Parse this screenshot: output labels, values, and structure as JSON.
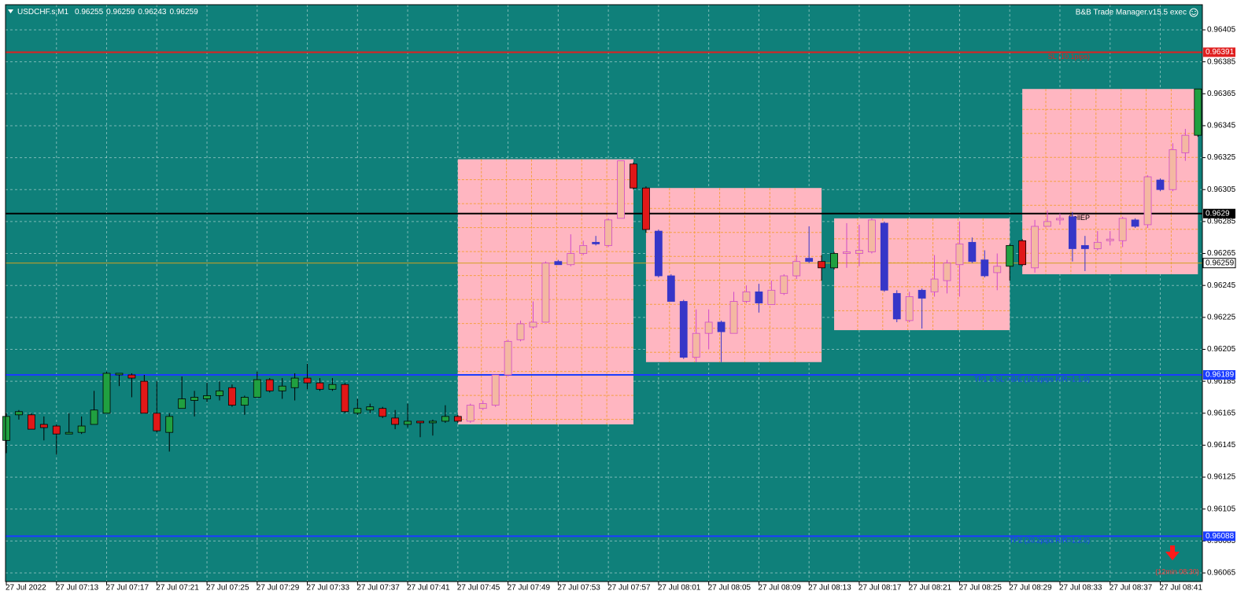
{
  "chart_data": {
    "type": "candlestick",
    "header": {
      "symbol": "USDCHF.s,M1",
      "ohlc": [
        0.96255,
        0.96259,
        0.96243,
        0.96259
      ]
    },
    "tool": "B&B Trade Manager.v15.5 exec",
    "countdown": "(12min 08:30)",
    "categories": [
      "27 Jul 2022",
      null,
      null,
      null,
      "27 Jul 07:13",
      null,
      null,
      null,
      "27 Jul 07:17",
      null,
      null,
      null,
      "27 Jul 07:21",
      null,
      null,
      null,
      "27 Jul 07:25",
      null,
      null,
      null,
      "27 Jul 07:29",
      null,
      null,
      null,
      "27 Jul 07:33",
      null,
      null,
      null,
      "27 Jul 07:37",
      null,
      null,
      null,
      "27 Jul 07:41",
      null,
      null,
      null,
      "27 Jul 07:45",
      null,
      null,
      null,
      "27 Jul 07:49",
      null,
      null,
      null,
      "27 Jul 07:53",
      null,
      null,
      null,
      "27 Jul 07:57",
      null,
      null,
      null,
      "27 Jul 08:01",
      null,
      null,
      null,
      "27 Jul 08:05",
      null,
      null,
      null,
      "27 Jul 08:09",
      null,
      null,
      null,
      "27 Jul 08:13",
      null,
      null,
      null,
      "27 Jul 08:17",
      null,
      null,
      null,
      "27 Jul 08:21",
      null,
      null,
      null,
      "27 Jul 08:25",
      null,
      null,
      null,
      "27 Jul 08:29",
      null,
      null,
      null,
      "27 Jul 08:33",
      null,
      null,
      null,
      "27 Jul 08:37",
      null,
      null,
      null,
      "27 Jul 08:41",
      null,
      null,
      null
    ],
    "open": [
      0.96148,
      0.96164,
      0.96164,
      0.96158,
      0.96157,
      0.96152,
      0.96153,
      0.96158,
      0.96165,
      0.96189,
      0.96189,
      0.96185,
      0.96165,
      0.96153,
      0.96168,
      0.96173,
      0.96174,
      0.96176,
      0.96181,
      0.9617,
      0.96175,
      0.96186,
      0.96179,
      0.96181,
      0.96187,
      0.96184,
      0.9618,
      0.96183,
      0.96165,
      0.96167,
      0.96168,
      0.96162,
      0.96158,
      0.9616,
      0.96159,
      0.9616,
      0.96163,
      0.9616,
      0.96168,
      0.9617,
      0.96189,
      0.96211,
      0.96219,
      0.96222,
      0.9626,
      0.96258,
      0.96265,
      0.96272,
      0.9627,
      0.96287,
      0.96321,
      0.96306,
      0.96279,
      0.96251,
      0.96235,
      0.962,
      0.96215,
      0.96222,
      0.96215,
      0.96235,
      0.96241,
      0.96233,
      0.9624,
      0.96251,
      0.96262,
      0.9626,
      0.96256,
      0.96265,
      0.96265,
      0.96266,
      0.96284,
      0.9624,
      0.96223,
      0.96242,
      0.96241,
      0.96248,
      0.96258,
      0.96272,
      0.96261,
      0.96253,
      0.96257,
      0.96273,
      0.96256,
      0.96282,
      0.96286,
      0.96288,
      0.9627,
      0.96268,
      0.96273,
      0.96273,
      0.96286,
      0.96283,
      0.96311,
      0.96305,
      0.96328,
      0.96339
    ],
    "high": [
      0.96165,
      0.96167,
      0.96165,
      0.96163,
      0.96158,
      0.96165,
      0.96163,
      0.96179,
      0.96191,
      0.9619,
      0.9619,
      0.96189,
      0.96185,
      0.96165,
      0.96188,
      0.96179,
      0.96184,
      0.96185,
      0.96183,
      0.96176,
      0.96191,
      0.96187,
      0.96187,
      0.9619,
      0.96196,
      0.96187,
      0.96187,
      0.96184,
      0.96174,
      0.96171,
      0.96169,
      0.96167,
      0.96171,
      0.9616,
      0.96161,
      0.9617,
      0.96164,
      0.96171,
      0.96173,
      0.96189,
      0.96211,
      0.96223,
      0.96235,
      0.9626,
      0.96261,
      0.96277,
      0.96273,
      0.96276,
      0.96287,
      0.96323,
      0.96322,
      0.96307,
      0.9628,
      0.96252,
      0.96236,
      0.9623,
      0.9623,
      0.96223,
      0.96241,
      0.96245,
      0.96246,
      0.96248,
      0.96252,
      0.96264,
      0.96282,
      0.96264,
      0.96266,
      0.96284,
      0.96283,
      0.96287,
      0.96285,
      0.96242,
      0.96241,
      0.96243,
      0.96264,
      0.96261,
      0.96285,
      0.96275,
      0.96267,
      0.96265,
      0.96271,
      0.96274,
      0.96286,
      0.96292,
      0.9629,
      0.96291,
      0.96276,
      0.96279,
      0.96279,
      0.96288,
      0.96287,
      0.96314,
      0.96312,
      0.96334,
      0.96343,
      0.96368
    ],
    "low": [
      0.9614,
      0.96161,
      0.96155,
      0.96148,
      0.96139,
      0.96152,
      0.96152,
      0.96158,
      0.96165,
      0.96182,
      0.96175,
      0.96165,
      0.96153,
      0.96141,
      0.96168,
      0.96163,
      0.96172,
      0.96173,
      0.96169,
      0.96164,
      0.96175,
      0.96178,
      0.96174,
      0.96173,
      0.9618,
      0.96179,
      0.96179,
      0.96165,
      0.96164,
      0.96165,
      0.96162,
      0.96155,
      0.96156,
      0.9615,
      0.96151,
      0.96159,
      0.96159,
      0.96159,
      0.96167,
      0.96169,
      0.96188,
      0.9621,
      0.96218,
      0.96222,
      0.96258,
      0.96257,
      0.96264,
      0.9627,
      0.96269,
      0.96287,
      0.96305,
      0.96278,
      0.9625,
      0.96235,
      0.96199,
      0.96197,
      0.96205,
      0.96197,
      0.96215,
      0.96234,
      0.96228,
      0.96233,
      0.96239,
      0.96249,
      0.96259,
      0.96248,
      0.96255,
      0.96256,
      0.96257,
      0.96265,
      0.96241,
      0.96222,
      0.96222,
      0.96218,
      0.96238,
      0.9624,
      0.96238,
      0.96259,
      0.9625,
      0.96242,
      0.96248,
      0.96257,
      0.96253,
      0.96282,
      0.96283,
      0.9626,
      0.96254,
      0.96267,
      0.9627,
      0.96269,
      0.96281,
      0.96281,
      0.96304,
      0.96304,
      0.96323,
      0.96338
    ],
    "close": [
      0.96163,
      0.96166,
      0.96155,
      0.96156,
      0.96152,
      0.96153,
      0.96157,
      0.96167,
      0.9619,
      0.9619,
      0.96187,
      0.96165,
      0.96154,
      0.96163,
      0.96174,
      0.96175,
      0.96176,
      0.96179,
      0.9617,
      0.96175,
      0.96186,
      0.96179,
      0.96182,
      0.96187,
      0.96184,
      0.9618,
      0.96183,
      0.96166,
      0.96168,
      0.96169,
      0.96163,
      0.96158,
      0.9616,
      0.96159,
      0.9616,
      0.96163,
      0.9616,
      0.9617,
      0.96171,
      0.96189,
      0.9621,
      0.96221,
      0.96222,
      0.96259,
      0.96258,
      0.96265,
      0.9627,
      0.96271,
      0.96286,
      0.96323,
      0.96306,
      0.9628,
      0.96251,
      0.96235,
      0.962,
      0.96215,
      0.96222,
      0.96216,
      0.96235,
      0.96241,
      0.96234,
      0.96242,
      0.96251,
      0.9626,
      0.9626,
      0.96256,
      0.96265,
      0.96266,
      0.96267,
      0.96286,
      0.96242,
      0.96224,
      0.96238,
      0.96237,
      0.96249,
      0.96259,
      0.96271,
      0.9626,
      0.96251,
      0.96257,
      0.9627,
      0.96258,
      0.96282,
      0.96285,
      0.96287,
      0.96268,
      0.96268,
      0.96272,
      0.96274,
      0.96287,
      0.96282,
      0.96313,
      0.96305,
      0.9633,
      0.96339,
      0.96368
    ],
    "colors": {
      "bull": "#20a040",
      "bear": "#e01818",
      "wick": "#000000"
    },
    "zones": [
      {
        "first_bar": 36,
        "last_bar": 50,
        "low": 0.96158,
        "high": 0.96324
      },
      {
        "first_bar": 51,
        "last_bar": 65,
        "low": 0.96197,
        "high": 0.96306
      },
      {
        "first_bar": 66,
        "last_bar": 80,
        "low": 0.96217,
        "high": 0.96287
      },
      {
        "first_bar": 81,
        "last_bar": 95,
        "low": 0.96252,
        "high": 0.96368
      }
    ],
    "zone_style": {
      "fill": "#ffb6c1",
      "grid": "#f5a040",
      "bull": "#f4b8a2",
      "bear": "#3636c8",
      "bull_wick": "#d04ac8"
    },
    "levels": [
      {
        "name": "SL (10.1pips)",
        "value": 0.96391,
        "color": "#e02020"
      },
      {
        "name": "SellEP",
        "value": 0.9629,
        "color": "#000000"
      },
      {
        "name": "TP1 & SL->B/E (10.1pips R/R=1:1.0)",
        "value": 0.96189,
        "color": "#1a3cff"
      },
      {
        "name": "TP2 (20.2pips R/R=1:2.0)",
        "value": 0.96088,
        "color": "#1a3cff"
      }
    ],
    "bid": {
      "value": 0.96259,
      "color": "#d4a020"
    },
    "ylim": [
      0.9606,
      0.9642
    ],
    "yticks": [
      0.96065,
      0.96085,
      0.96105,
      0.96125,
      0.96145,
      0.96165,
      0.96185,
      0.96205,
      0.96225,
      0.96245,
      0.96265,
      0.96285,
      0.96305,
      0.96325,
      0.96345,
      0.96365,
      0.96385,
      0.96405
    ],
    "grid": true
  }
}
